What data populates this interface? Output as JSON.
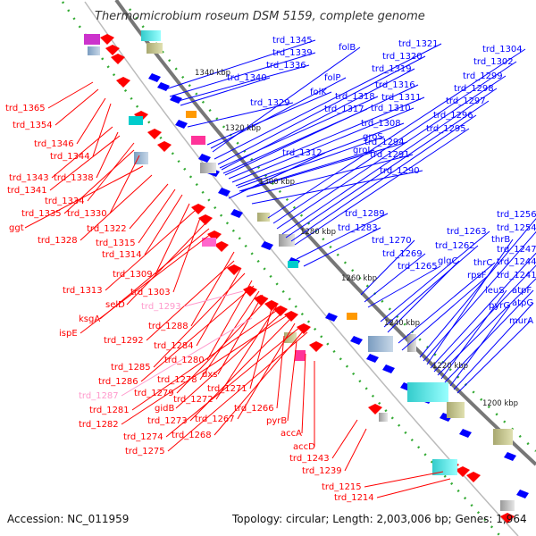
{
  "title": "Thermomicrobium roseum DSM 5159, complete genome",
  "footer": {
    "accession": "Accession: NC_011959",
    "summary": "Topology: circular; Length: 2,003,006 bp; Genes: 1,964"
  },
  "colors": {
    "forward": "#ff0000",
    "reverse": "#0000ff",
    "pseudo": "#ff99cc",
    "backbone": "#777777"
  },
  "ticks": [
    "1340 kbp",
    "1320 kbp",
    "1300 kbp",
    "1280 kbp",
    "1260 kbp",
    "1240 kbp",
    "1220 kbp",
    "1200 kbp"
  ],
  "labels_blue": [
    "trd_1345",
    "trd_1339",
    "trd_1336",
    "trd_1340",
    "trd_1329",
    "trd_1312",
    "trd_1321",
    "trd_1320",
    "trd_1319",
    "trd_1316",
    "trd_1311",
    "trd_1310",
    "trd_1308",
    "trd_1294",
    "trd_1291",
    "trd_1290",
    "folB",
    "folP",
    "folK",
    "trd_1318",
    "trd_1317",
    "groS",
    "groL",
    "trd_1304",
    "trd_1302",
    "trd_1299",
    "trd_1298",
    "trd_1297",
    "trd_1296",
    "trd_1295",
    "trd_1289",
    "trd_1283",
    "trd_1270",
    "trd_1269",
    "trd_1265",
    "trd_1263",
    "trd_1262",
    "glgC",
    "thrC",
    "rpsF",
    "trd_1256",
    "trd_1254",
    "thrB",
    "trd_1247",
    "trd_1244",
    "trd_1241",
    "leuS",
    "atpF",
    "pyrG",
    "atpG",
    "murA"
  ],
  "labels_red": [
    "trd_1365",
    "trd_1354",
    "trd_1346",
    "trd_1344",
    "trd_1343",
    "trd_1338",
    "trd_1341",
    "trd_1334",
    "trd_1335",
    "trd_1330",
    "ggt",
    "trd_1328",
    "trd_1322",
    "trd_1315",
    "trd_1314",
    "trd_1309",
    "trd_1313",
    "trd_1303",
    "selD",
    "ksgA",
    "ispE",
    "trd_1288",
    "trd_1292",
    "trd_1284",
    "trd_1285",
    "trd_1280",
    "trd_1286",
    "trd_1278",
    "dxs",
    "trd_1279",
    "trd_1271",
    "trd_1272",
    "trd_1281",
    "gidB",
    "trd_1282",
    "trd_1273",
    "trd_1267",
    "trd_1274",
    "trd_1268",
    "trd_1266",
    "trd_1275",
    "pyrB",
    "accA",
    "accD",
    "trd_1243",
    "trd_1239",
    "trd_1215",
    "trd_1214"
  ],
  "labels_pseudo": [
    "trd_1293",
    "trd_1287"
  ]
}
